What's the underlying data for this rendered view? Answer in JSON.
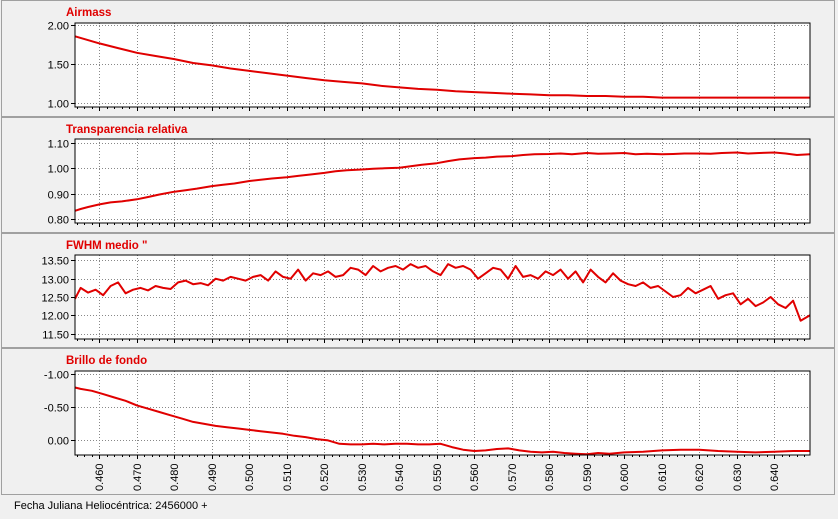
{
  "footer": {
    "xlabel": "Fecha Juliana Heliocéntrica: 2456000 +"
  },
  "colors": {
    "series": "#e00000",
    "plot_bg": "#ffffff",
    "grid": "#888888",
    "panel_bg": "#f0f0f0"
  },
  "x_ticks": [
    "0.460",
    "0.470",
    "0.480",
    "0.490",
    "0.500",
    "0.510",
    "0.520",
    "0.530",
    "0.540",
    "0.550",
    "0.560",
    "0.570",
    "0.580",
    "0.590",
    "0.600",
    "0.610",
    "0.620",
    "0.630",
    "0.640"
  ],
  "chart_data": [
    {
      "type": "line",
      "title": "Airmass",
      "xlim": [
        0.4535,
        0.6495
      ],
      "ylim": [
        0.95,
        2.02
      ],
      "yticks": [
        1.0,
        1.5,
        2.0
      ],
      "ytick_labels": [
        "1.00",
        "1.50",
        "2.00"
      ],
      "reversed": false,
      "grid": true,
      "x": [
        0.4535,
        0.455,
        0.46,
        0.465,
        0.47,
        0.475,
        0.48,
        0.485,
        0.49,
        0.495,
        0.5,
        0.505,
        0.51,
        0.515,
        0.52,
        0.525,
        0.53,
        0.535,
        0.54,
        0.545,
        0.55,
        0.555,
        0.56,
        0.565,
        0.57,
        0.575,
        0.58,
        0.585,
        0.59,
        0.595,
        0.6,
        0.605,
        0.61,
        0.615,
        0.62,
        0.625,
        0.63,
        0.635,
        0.64,
        0.645,
        0.6495
      ],
      "y": [
        1.85,
        1.83,
        1.76,
        1.7,
        1.64,
        1.6,
        1.56,
        1.51,
        1.48,
        1.44,
        1.41,
        1.38,
        1.35,
        1.32,
        1.29,
        1.27,
        1.25,
        1.22,
        1.2,
        1.18,
        1.17,
        1.15,
        1.14,
        1.13,
        1.12,
        1.11,
        1.1,
        1.1,
        1.09,
        1.09,
        1.08,
        1.08,
        1.07,
        1.07,
        1.07,
        1.07,
        1.07,
        1.07,
        1.07,
        1.07,
        1.07
      ]
    },
    {
      "type": "line",
      "title": "Transparencia relativa",
      "xlim": [
        0.4535,
        0.6495
      ],
      "ylim": [
        0.785,
        1.115
      ],
      "yticks": [
        0.8,
        0.9,
        1.0,
        1.1
      ],
      "ytick_labels": [
        "0.80",
        "0.90",
        "1.00",
        "1.10"
      ],
      "reversed": false,
      "grid": true,
      "x": [
        0.4535,
        0.455,
        0.457,
        0.46,
        0.463,
        0.466,
        0.47,
        0.473,
        0.476,
        0.48,
        0.483,
        0.486,
        0.49,
        0.493,
        0.496,
        0.5,
        0.503,
        0.506,
        0.51,
        0.513,
        0.516,
        0.52,
        0.523,
        0.526,
        0.53,
        0.533,
        0.536,
        0.54,
        0.543,
        0.546,
        0.55,
        0.553,
        0.556,
        0.56,
        0.563,
        0.566,
        0.57,
        0.573,
        0.576,
        0.58,
        0.583,
        0.586,
        0.59,
        0.593,
        0.596,
        0.6,
        0.603,
        0.606,
        0.61,
        0.613,
        0.616,
        0.62,
        0.623,
        0.626,
        0.63,
        0.633,
        0.636,
        0.64,
        0.643,
        0.646,
        0.6495
      ],
      "y": [
        0.833,
        0.84,
        0.848,
        0.858,
        0.866,
        0.87,
        0.878,
        0.887,
        0.897,
        0.908,
        0.914,
        0.92,
        0.93,
        0.935,
        0.94,
        0.95,
        0.955,
        0.96,
        0.965,
        0.97,
        0.975,
        0.982,
        0.988,
        0.992,
        0.995,
        0.998,
        1.0,
        1.002,
        1.008,
        1.014,
        1.02,
        1.028,
        1.035,
        1.04,
        1.042,
        1.046,
        1.048,
        1.052,
        1.055,
        1.056,
        1.058,
        1.055,
        1.06,
        1.057,
        1.058,
        1.06,
        1.055,
        1.057,
        1.055,
        1.056,
        1.058,
        1.058,
        1.057,
        1.06,
        1.062,
        1.058,
        1.06,
        1.062,
        1.058,
        1.052,
        1.055
      ]
    },
    {
      "type": "line",
      "title": "FWHM medio \"",
      "xlim": [
        0.4535,
        0.6495
      ],
      "ylim": [
        11.35,
        13.65
      ],
      "yticks": [
        11.5,
        12.0,
        12.5,
        13.0,
        13.5
      ],
      "ytick_labels": [
        "11.50",
        "12.00",
        "12.50",
        "13.00",
        "13.50"
      ],
      "reversed": false,
      "grid": true,
      "x": [
        0.4535,
        0.455,
        0.457,
        0.459,
        0.461,
        0.463,
        0.465,
        0.467,
        0.469,
        0.471,
        0.473,
        0.475,
        0.477,
        0.479,
        0.481,
        0.483,
        0.485,
        0.487,
        0.489,
        0.491,
        0.493,
        0.495,
        0.497,
        0.499,
        0.501,
        0.503,
        0.505,
        0.507,
        0.509,
        0.511,
        0.513,
        0.515,
        0.517,
        0.519,
        0.521,
        0.523,
        0.525,
        0.527,
        0.529,
        0.531,
        0.533,
        0.535,
        0.537,
        0.539,
        0.541,
        0.543,
        0.545,
        0.547,
        0.549,
        0.551,
        0.553,
        0.555,
        0.557,
        0.559,
        0.561,
        0.563,
        0.565,
        0.567,
        0.569,
        0.571,
        0.573,
        0.575,
        0.577,
        0.579,
        0.581,
        0.583,
        0.585,
        0.587,
        0.589,
        0.591,
        0.593,
        0.595,
        0.597,
        0.599,
        0.601,
        0.603,
        0.605,
        0.607,
        0.609,
        0.611,
        0.613,
        0.615,
        0.617,
        0.619,
        0.621,
        0.623,
        0.625,
        0.627,
        0.629,
        0.631,
        0.633,
        0.635,
        0.637,
        0.639,
        0.641,
        0.643,
        0.645,
        0.647,
        0.6495
      ],
      "y": [
        12.45,
        12.75,
        12.62,
        12.7,
        12.55,
        12.8,
        12.9,
        12.6,
        12.7,
        12.75,
        12.68,
        12.8,
        12.75,
        12.72,
        12.9,
        12.95,
        12.85,
        12.88,
        12.82,
        13.0,
        12.95,
        13.05,
        13.0,
        12.95,
        13.05,
        13.1,
        12.95,
        13.2,
        13.05,
        13.0,
        13.25,
        12.95,
        13.15,
        13.1,
        13.2,
        13.05,
        13.1,
        13.3,
        13.25,
        13.1,
        13.35,
        13.2,
        13.3,
        13.35,
        13.25,
        13.4,
        13.3,
        13.35,
        13.2,
        13.1,
        13.4,
        13.3,
        13.35,
        13.25,
        13.0,
        13.15,
        13.3,
        13.25,
        13.0,
        13.35,
        13.05,
        13.1,
        13.0,
        13.2,
        13.1,
        13.25,
        13.0,
        13.2,
        12.9,
        13.25,
        13.05,
        12.9,
        13.15,
        12.95,
        12.85,
        12.8,
        12.9,
        12.75,
        12.8,
        12.65,
        12.5,
        12.55,
        12.75,
        12.6,
        12.7,
        12.8,
        12.45,
        12.55,
        12.6,
        12.3,
        12.45,
        12.25,
        12.35,
        12.5,
        12.3,
        12.2,
        12.4,
        11.85,
        12.0
      ]
    },
    {
      "type": "line",
      "title": "Brillo de fondo",
      "xlim": [
        0.4535,
        0.6495
      ],
      "ylim": [
        0.22,
        -1.05
      ],
      "yticks": [
        0.0,
        -0.5,
        -1.0
      ],
      "ytick_labels": [
        "0.00",
        "-0.50",
        "-1.00"
      ],
      "reversed": true,
      "grid": true,
      "x": [
        0.4535,
        0.455,
        0.458,
        0.461,
        0.464,
        0.467,
        0.47,
        0.473,
        0.476,
        0.479,
        0.482,
        0.485,
        0.488,
        0.491,
        0.494,
        0.497,
        0.5,
        0.503,
        0.506,
        0.509,
        0.512,
        0.515,
        0.518,
        0.521,
        0.524,
        0.527,
        0.53,
        0.533,
        0.536,
        0.539,
        0.542,
        0.545,
        0.548,
        0.551,
        0.554,
        0.557,
        0.56,
        0.563,
        0.566,
        0.569,
        0.572,
        0.575,
        0.578,
        0.581,
        0.584,
        0.587,
        0.59,
        0.593,
        0.596,
        0.6,
        0.605,
        0.61,
        0.615,
        0.62,
        0.625,
        0.63,
        0.635,
        0.64,
        0.645,
        0.6495
      ],
      "y": [
        -0.8,
        -0.78,
        -0.75,
        -0.7,
        -0.65,
        -0.6,
        -0.53,
        -0.48,
        -0.43,
        -0.38,
        -0.33,
        -0.28,
        -0.25,
        -0.22,
        -0.2,
        -0.18,
        -0.16,
        -0.14,
        -0.12,
        -0.1,
        -0.07,
        -0.05,
        -0.02,
        0.0,
        0.05,
        0.06,
        0.06,
        0.05,
        0.06,
        0.05,
        0.05,
        0.06,
        0.06,
        0.05,
        0.1,
        0.14,
        0.16,
        0.15,
        0.13,
        0.12,
        0.15,
        0.17,
        0.18,
        0.17,
        0.19,
        0.2,
        0.21,
        0.19,
        0.2,
        0.18,
        0.17,
        0.15,
        0.14,
        0.14,
        0.16,
        0.17,
        0.18,
        0.17,
        0.16,
        0.16
      ]
    }
  ]
}
